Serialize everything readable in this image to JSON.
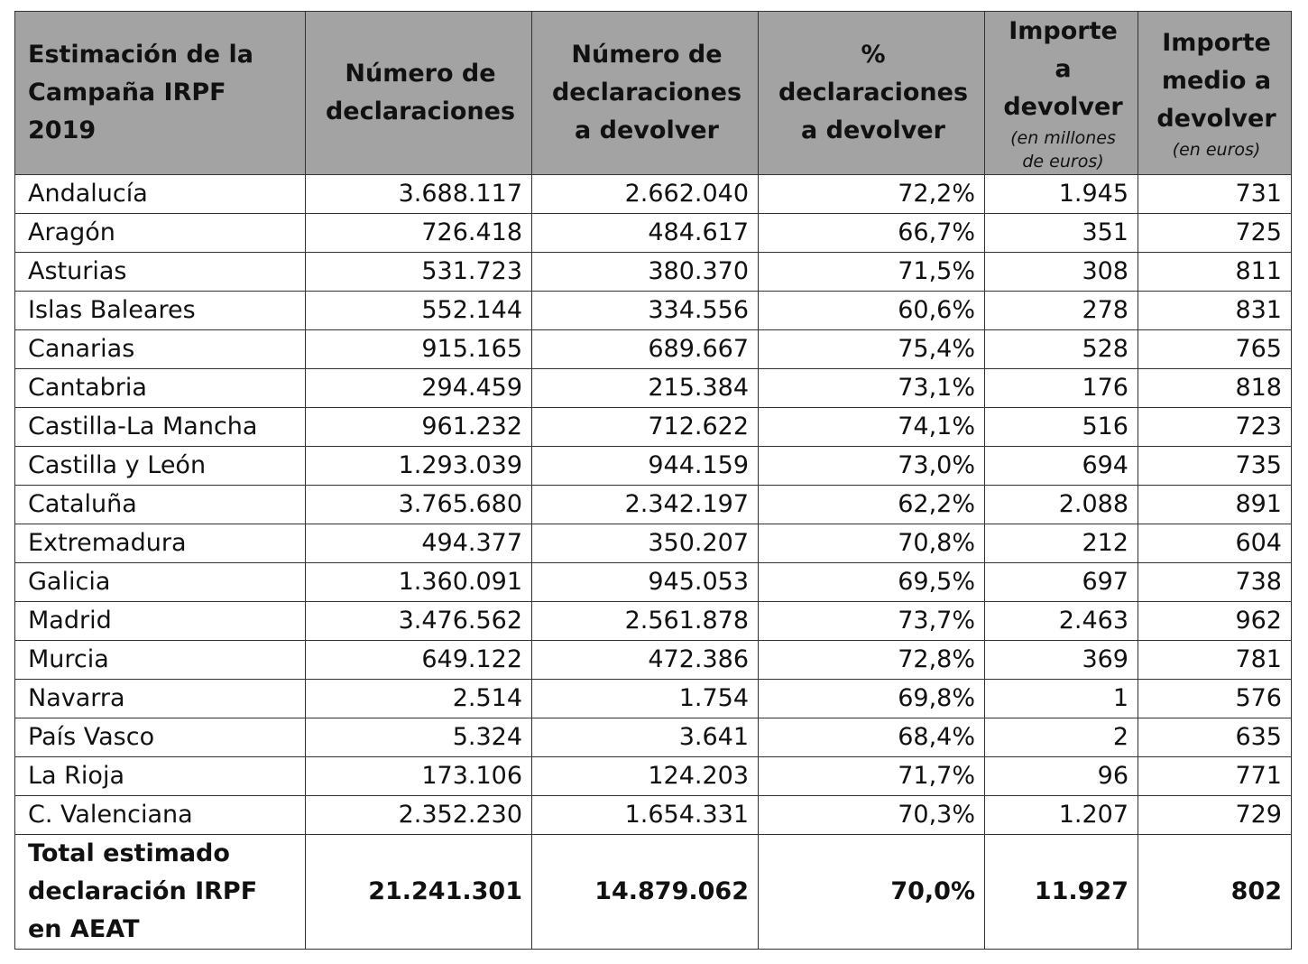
{
  "table": {
    "headers": [
      {
        "title": "Estimación de la Campaña IRPF 2019"
      },
      {
        "title": "Número de declaraciones"
      },
      {
        "title": "Número de declaraciones a devolver"
      },
      {
        "title": "% declaraciones a devolver"
      },
      {
        "title": "Importe a devolver",
        "note": "(en millones de euros)"
      },
      {
        "title": "Importe medio a devolver",
        "note": "(en euros)"
      }
    ],
    "rows": [
      [
        "Andalucía",
        "3.688.117",
        "2.662.040",
        "72,2%",
        "1.945",
        "731"
      ],
      [
        "Aragón",
        "726.418",
        "484.617",
        "66,7%",
        "351",
        "725"
      ],
      [
        "Asturias",
        "531.723",
        "380.370",
        "71,5%",
        "308",
        "811"
      ],
      [
        "Islas Baleares",
        "552.144",
        "334.556",
        "60,6%",
        "278",
        "831"
      ],
      [
        "Canarias",
        "915.165",
        "689.667",
        "75,4%",
        "528",
        "765"
      ],
      [
        "Cantabria",
        "294.459",
        "215.384",
        "73,1%",
        "176",
        "818"
      ],
      [
        "Castilla-La Mancha",
        "961.232",
        "712.622",
        "74,1%",
        "516",
        "723"
      ],
      [
        "Castilla y León",
        "1.293.039",
        "944.159",
        "73,0%",
        "694",
        "735"
      ],
      [
        "Cataluña",
        "3.765.680",
        "2.342.197",
        "62,2%",
        "2.088",
        "891"
      ],
      [
        "Extremadura",
        "494.377",
        "350.207",
        "70,8%",
        "212",
        "604"
      ],
      [
        "Galicia",
        "1.360.091",
        "945.053",
        "69,5%",
        "697",
        "738"
      ],
      [
        "Madrid",
        "3.476.562",
        "2.561.878",
        "73,7%",
        "2.463",
        "962"
      ],
      [
        "Murcia",
        "649.122",
        "472.386",
        "72,8%",
        "369",
        "781"
      ],
      [
        "Navarra",
        "2.514",
        "1.754",
        "69,8%",
        "1",
        "576"
      ],
      [
        "País Vasco",
        "5.324",
        "3.641",
        "68,4%",
        "2",
        "635"
      ],
      [
        "La Rioja",
        "173.106",
        "124.203",
        "71,7%",
        "96",
        "771"
      ],
      [
        "C. Valenciana",
        "2.352.230",
        "1.654.331",
        "70,3%",
        "1.207",
        "729"
      ]
    ],
    "total": [
      "Total estimado declaración IRPF en AEAT",
      "21.241.301",
      "14.879.062",
      "70,0%",
      "11.927",
      "802"
    ]
  }
}
